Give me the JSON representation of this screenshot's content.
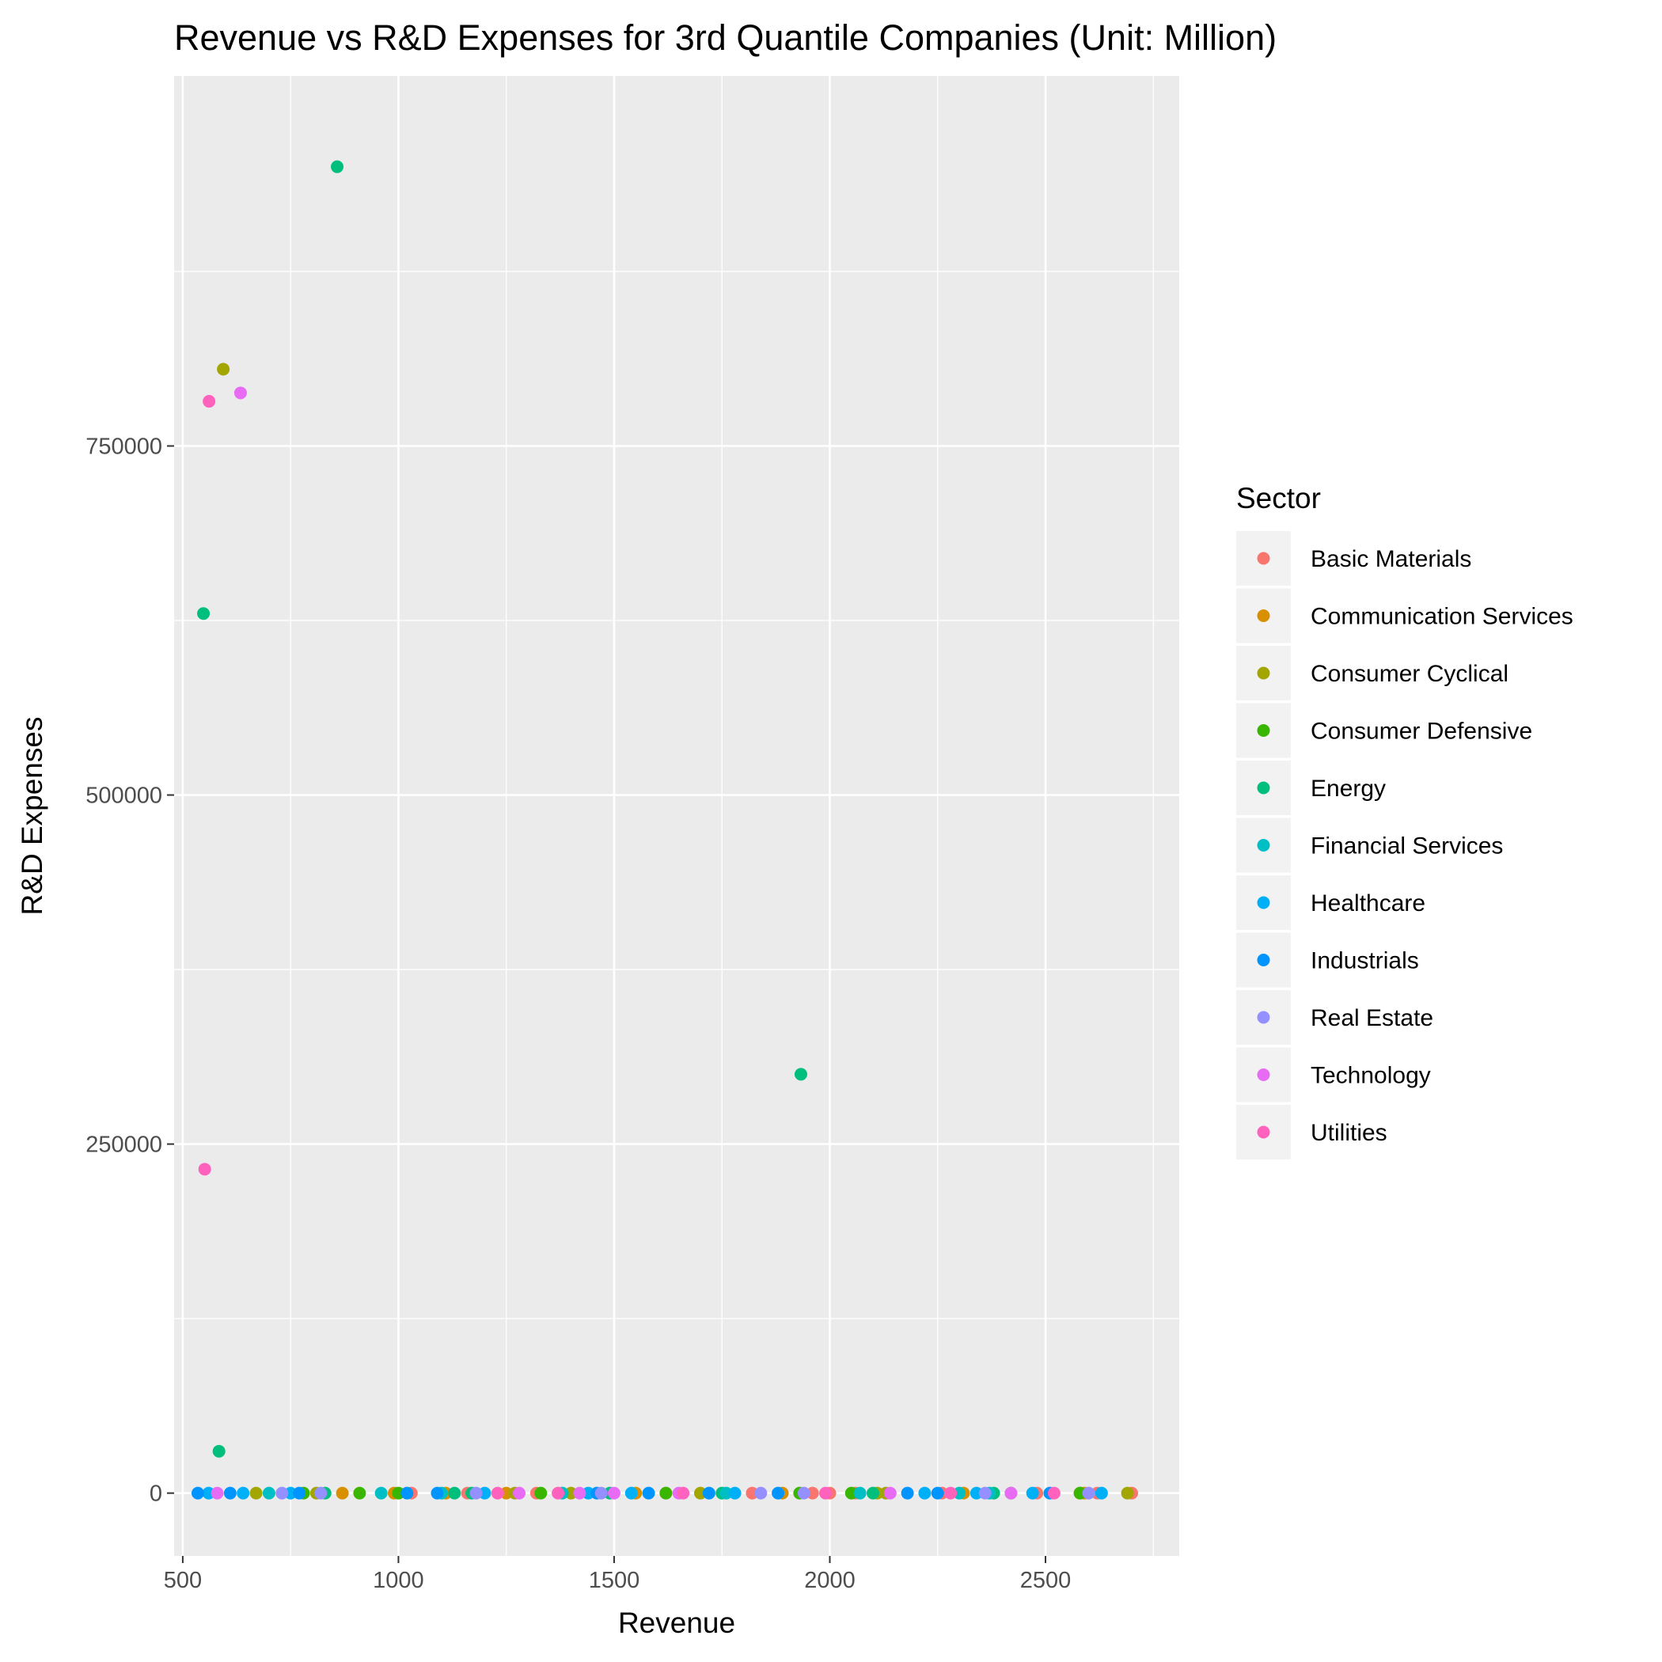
{
  "chart_data": {
    "type": "scatter",
    "title": "Revenue vs R&D Expenses for 3rd Quantile Companies (Unit: Million)",
    "xlabel": "Revenue",
    "ylabel": "R&D Expenses",
    "xlim": [
      480,
      2810
    ],
    "ylim": [
      -45000,
      1015000
    ],
    "x_ticks": [
      500,
      1000,
      1500,
      2000,
      2500
    ],
    "x_tick_labels": [
      "500",
      "1000",
      "1500",
      "2000",
      "2500"
    ],
    "y_ticks": [
      0,
      250000,
      500000,
      750000
    ],
    "y_tick_labels": [
      "0",
      "250000",
      "500000",
      "750000"
    ],
    "grid": true,
    "legend_position": "right",
    "legend": {
      "title": "Sector",
      "entries": [
        {
          "name": "Basic Materials",
          "color": "#F8766D"
        },
        {
          "name": "Communication Services",
          "color": "#D89000"
        },
        {
          "name": "Consumer Cyclical",
          "color": "#A3A500"
        },
        {
          "name": "Consumer Defensive",
          "color": "#39B600"
        },
        {
          "name": "Energy",
          "color": "#00BF7D"
        },
        {
          "name": "Financial Services",
          "color": "#00BFC4"
        },
        {
          "name": "Healthcare",
          "color": "#00B0F6"
        },
        {
          "name": "Industrials",
          "color": "#0094FF"
        },
        {
          "name": "Real Estate",
          "color": "#9590FF"
        },
        {
          "name": "Technology",
          "color": "#E76BF3"
        },
        {
          "name": "Utilities",
          "color": "#FF62BC"
        }
      ]
    },
    "series": [
      {
        "name": "Basic Materials",
        "points": [
          [
            1030,
            0
          ],
          [
            1160,
            0
          ],
          [
            1320,
            0
          ],
          [
            1620,
            0
          ],
          [
            1820,
            0
          ],
          [
            1960,
            0
          ],
          [
            2000,
            0
          ],
          [
            2060,
            0
          ],
          [
            2260,
            0
          ],
          [
            2480,
            0
          ],
          [
            2620,
            0
          ],
          [
            2700,
            0
          ]
        ]
      },
      {
        "name": "Communication Services",
        "points": [
          [
            870,
            0
          ],
          [
            990,
            0
          ],
          [
            1110,
            0
          ],
          [
            1250,
            0
          ],
          [
            1550,
            0
          ],
          [
            1890,
            0
          ],
          [
            2310,
            0
          ],
          [
            2590,
            0
          ]
        ]
      },
      {
        "name": "Consumer Cyclical",
        "points": [
          [
            594,
            805000
          ],
          [
            670,
            0
          ],
          [
            810,
            0
          ],
          [
            1270,
            0
          ],
          [
            1400,
            0
          ],
          [
            1700,
            0
          ],
          [
            2110,
            0
          ],
          [
            2130,
            0
          ],
          [
            2580,
            0
          ],
          [
            2690,
            0
          ]
        ]
      },
      {
        "name": "Consumer Defensive",
        "points": [
          [
            780,
            0
          ],
          [
            910,
            0
          ],
          [
            1000,
            0
          ],
          [
            1330,
            0
          ],
          [
            1620,
            0
          ],
          [
            1930,
            0
          ],
          [
            2050,
            0
          ],
          [
            2420,
            0
          ],
          [
            2580,
            0
          ]
        ]
      },
      {
        "name": "Energy",
        "points": [
          [
            858,
            950000
          ],
          [
            548,
            630000
          ],
          [
            1933,
            300000
          ],
          [
            584,
            30000
          ],
          [
            830,
            0
          ],
          [
            1130,
            0
          ],
          [
            1170,
            0
          ],
          [
            1490,
            0
          ],
          [
            1750,
            0
          ],
          [
            2100,
            0
          ],
          [
            2380,
            0
          ]
        ]
      },
      {
        "name": "Financial Services",
        "points": [
          [
            700,
            0
          ],
          [
            960,
            0
          ],
          [
            1100,
            0
          ],
          [
            1380,
            0
          ],
          [
            1760,
            0
          ],
          [
            2070,
            0
          ],
          [
            2300,
            0
          ],
          [
            2370,
            0
          ]
        ]
      },
      {
        "name": "Healthcare",
        "points": [
          [
            560,
            0
          ],
          [
            640,
            0
          ],
          [
            750,
            0
          ],
          [
            1200,
            0
          ],
          [
            1440,
            0
          ],
          [
            1540,
            0
          ],
          [
            1780,
            0
          ],
          [
            2220,
            0
          ],
          [
            2340,
            0
          ],
          [
            2470,
            0
          ],
          [
            2630,
            0
          ]
        ]
      },
      {
        "name": "Industrials",
        "points": [
          [
            535,
            0
          ],
          [
            610,
            0
          ],
          [
            770,
            0
          ],
          [
            1020,
            0
          ],
          [
            1090,
            0
          ],
          [
            1460,
            0
          ],
          [
            1580,
            0
          ],
          [
            1720,
            0
          ],
          [
            1880,
            0
          ],
          [
            2180,
            0
          ],
          [
            2250,
            0
          ],
          [
            2510,
            0
          ]
        ]
      },
      {
        "name": "Real Estate",
        "points": [
          [
            730,
            0
          ],
          [
            820,
            0
          ],
          [
            1180,
            0
          ],
          [
            1470,
            0
          ],
          [
            1840,
            0
          ],
          [
            1940,
            0
          ],
          [
            2360,
            0
          ],
          [
            2600,
            0
          ]
        ]
      },
      {
        "name": "Technology",
        "points": [
          [
            634,
            788000
          ],
          [
            580,
            0
          ],
          [
            1280,
            0
          ],
          [
            1420,
            0
          ],
          [
            1500,
            0
          ],
          [
            1650,
            0
          ],
          [
            2140,
            0
          ],
          [
            2420,
            0
          ]
        ]
      },
      {
        "name": "Utilities",
        "points": [
          [
            561,
            782000
          ],
          [
            551,
            232000
          ],
          [
            1230,
            0
          ],
          [
            1370,
            0
          ],
          [
            1660,
            0
          ],
          [
            1990,
            0
          ],
          [
            2280,
            0
          ],
          [
            2520,
            0
          ]
        ]
      }
    ]
  }
}
